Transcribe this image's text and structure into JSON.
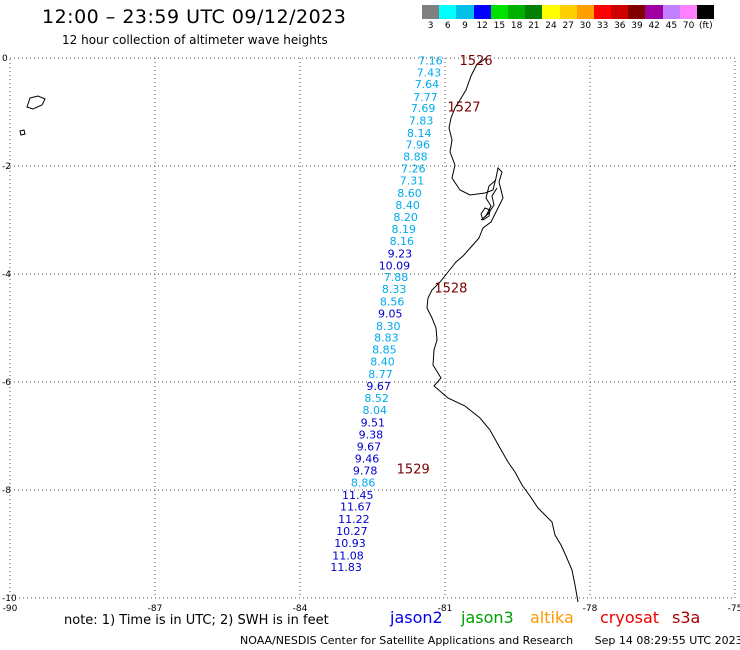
{
  "header": {
    "title": "12:00 – 23:59 UTC 09/12/2023",
    "subtitle": "12 hour collection of altimeter wave heights"
  },
  "color_scale": {
    "labels": [
      "3",
      "6",
      "9",
      "12",
      "15",
      "18",
      "21",
      "24",
      "27",
      "30",
      "33",
      "36",
      "39",
      "42",
      "45",
      "70",
      "(ft)"
    ],
    "colors": [
      "#808080",
      "#00ffff",
      "#00c0e8",
      "#0000ff",
      "#00e000",
      "#00b000",
      "#008000",
      "#ffff00",
      "#ffd000",
      "#ffa000",
      "#ff0000",
      "#d00000",
      "#800000",
      "#a000a0",
      "#c080ff",
      "#ff80ff",
      "#000000"
    ]
  },
  "axes": {
    "x_ticks": [
      "-90",
      "-87",
      "-84",
      "-81",
      "-78",
      "-75"
    ],
    "y_ticks": [
      "0",
      "-2",
      "-4",
      "-6",
      "-8",
      "-10"
    ]
  },
  "track": {
    "color_light": "#00aaee",
    "color_dark": "#0000cc",
    "labels": [
      {
        "text": "7.16",
        "lon": -81.05,
        "lat": -0.05
      },
      {
        "text": "7.43",
        "lon": -81.08,
        "lat": -0.27
      },
      {
        "text": "7.64",
        "lon": -81.12,
        "lat": -0.48
      },
      {
        "text": "7.77",
        "lon": -81.15,
        "lat": -0.72
      },
      {
        "text": "7.69",
        "lon": -81.2,
        "lat": -0.93
      },
      {
        "text": "7.83",
        "lon": -81.24,
        "lat": -1.16
      },
      {
        "text": "8.14",
        "lon": -81.28,
        "lat": -1.39
      },
      {
        "text": "7.96",
        "lon": -81.31,
        "lat": -1.6
      },
      {
        "text": "8.88",
        "lon": -81.36,
        "lat": -1.82
      },
      {
        "text": "7.26",
        "lon": -81.4,
        "lat": -2.05
      },
      {
        "text": "7.31",
        "lon": -81.43,
        "lat": -2.27
      },
      {
        "text": "8.60",
        "lon": -81.48,
        "lat": -2.5
      },
      {
        "text": "8.40",
        "lon": -81.52,
        "lat": -2.72
      },
      {
        "text": "8.20",
        "lon": -81.56,
        "lat": -2.94
      },
      {
        "text": "8.19",
        "lon": -81.6,
        "lat": -3.17
      },
      {
        "text": "8.16",
        "lon": -81.64,
        "lat": -3.39
      },
      {
        "text": "9.23",
        "lon": -81.68,
        "lat": -3.62,
        "dark": true
      },
      {
        "text": "10.09",
        "lon": -81.72,
        "lat": -3.84,
        "dark": true
      },
      {
        "text": "7.88",
        "lon": -81.76,
        "lat": -4.06
      },
      {
        "text": "8.33",
        "lon": -81.8,
        "lat": -4.28
      },
      {
        "text": "8.56",
        "lon": -81.84,
        "lat": -4.51
      },
      {
        "text": "9.05",
        "lon": -81.88,
        "lat": -4.73,
        "dark": true
      },
      {
        "text": "8.30",
        "lon": -81.92,
        "lat": -4.96
      },
      {
        "text": "8.83",
        "lon": -81.96,
        "lat": -5.18
      },
      {
        "text": "8.85",
        "lon": -82.0,
        "lat": -5.4
      },
      {
        "text": "8.40",
        "lon": -82.04,
        "lat": -5.62
      },
      {
        "text": "8.77",
        "lon": -82.08,
        "lat": -5.85
      },
      {
        "text": "9.67",
        "lon": -82.12,
        "lat": -6.07,
        "dark": true
      },
      {
        "text": "8.52",
        "lon": -82.16,
        "lat": -6.3
      },
      {
        "text": "8.04",
        "lon": -82.2,
        "lat": -6.52
      },
      {
        "text": "9.51",
        "lon": -82.24,
        "lat": -6.75,
        "dark": true
      },
      {
        "text": "9.38",
        "lon": -82.28,
        "lat": -6.97,
        "dark": true
      },
      {
        "text": "9.67",
        "lon": -82.32,
        "lat": -7.19,
        "dark": true
      },
      {
        "text": "9.46",
        "lon": -82.36,
        "lat": -7.42,
        "dark": true
      },
      {
        "text": "9.78",
        "lon": -82.4,
        "lat": -7.64,
        "dark": true
      },
      {
        "text": "8.86",
        "lon": -82.44,
        "lat": -7.86
      },
      {
        "text": "11.45",
        "lon": -82.48,
        "lat": -8.09,
        "dark": true
      },
      {
        "text": "11.67",
        "lon": -82.52,
        "lat": -8.31,
        "dark": true
      },
      {
        "text": "11.22",
        "lon": -82.56,
        "lat": -8.54,
        "dark": true
      },
      {
        "text": "10.27",
        "lon": -82.6,
        "lat": -8.76,
        "dark": true
      },
      {
        "text": "10.93",
        "lon": -82.64,
        "lat": -8.98,
        "dark": true
      },
      {
        "text": "11.08",
        "lon": -82.68,
        "lat": -9.21,
        "dark": true
      },
      {
        "text": "11.83",
        "lon": -82.72,
        "lat": -9.43,
        "dark": true
      }
    ]
  },
  "time_markers": [
    {
      "text": "1526",
      "lon": -80.7,
      "lat": -0.04
    },
    {
      "text": "1527",
      "lon": -80.95,
      "lat": -0.9
    },
    {
      "text": "1528",
      "lon": -81.22,
      "lat": -4.25
    },
    {
      "text": "1529",
      "lon": -82.0,
      "lat": -7.6
    }
  ],
  "footer": {
    "note": "note: 1) Time is in UTC; 2) SWH is in feet",
    "satellites": [
      {
        "name": "jason2",
        "color": "#0000ee"
      },
      {
        "name": "jason3",
        "color": "#00a000"
      },
      {
        "name": "altika",
        "color": "#ff9900"
      },
      {
        "name": "cryosat",
        "color": "#ee0000"
      },
      {
        "name": "s3a",
        "color": "#aa0000"
      }
    ],
    "credit": "NOAA/NESDIS Center for Satellite Applications and Research",
    "timestamp": "Sep 14 08:29:55 UTC 2023"
  },
  "colors": {
    "marker": "#7a0000",
    "grid": "#555555"
  }
}
